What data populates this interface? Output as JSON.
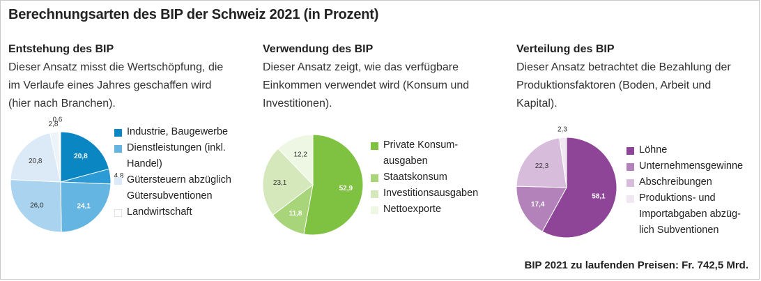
{
  "title": "Berechnungsarten des BIP der Schweiz 2021 (in Prozent)",
  "footnote": "BIP 2021 zu laufenden Preisen: Fr. 742,5 Mrd.",
  "columns": [
    {
      "title": "Entstehung des BIP",
      "desc": [
        "Dieser Ansatz misst die Wertschöpfung, die",
        "im Verlaufe eines Jahres geschaffen wird",
        "(hier nach Branchen)."
      ],
      "legend": [
        [
          "Industrie, Baugewerbe"
        ],
        [
          "Dienstleistungen (inkl.",
          "Handel)"
        ],
        [
          "Gütersteuern abzüglich",
          "Gütersubventionen"
        ],
        [
          "Landwirtschaft"
        ]
      ]
    },
    {
      "title": "Verwendung des BIP",
      "desc": [
        "Dieser Ansatz zeigt, wie das verfügbare",
        "Einkommen verwendet wird (Konsum und",
        "Investitionen)."
      ],
      "legend": [
        [
          "Private Konsum-",
          "ausgaben"
        ],
        [
          "Staatskonsum"
        ],
        [
          "Investitionsausgaben"
        ],
        [
          "Nettoexporte"
        ]
      ]
    },
    {
      "title": "Verteilung des BIP",
      "desc": [
        "Dieser Ansatz betrachtet die Bezahlung der",
        "Produktionsfaktoren (Boden, Arbeit und",
        "Kapital)."
      ],
      "legend": [
        [
          "Löhne"
        ],
        [
          "Unternehmensgewinne"
        ],
        [
          "Abschreibungen"
        ],
        [
          "Produktions- und",
          "Importabgaben abzüg-",
          "lich Subventionen"
        ]
      ]
    }
  ],
  "chart_data": [
    {
      "type": "pie",
      "title": "Entstehung des BIP",
      "slices": [
        {
          "label": "Industrie, Baugewerbe",
          "value": 20.8,
          "display": "20,8",
          "color": "#0a86c2"
        },
        {
          "label": "Industrie, Baugewerbe",
          "value": 4.8,
          "display": "4,8",
          "color": "#2c9ad4"
        },
        {
          "label": "Dienstleistungen (inkl. Handel)",
          "value": 24.1,
          "display": "24,1",
          "color": "#64b5e2"
        },
        {
          "label": "Dienstleistungen (inkl. Handel)",
          "value": 26.0,
          "display": "26,0",
          "color": "#a9d3ee"
        },
        {
          "label": "Gütersteuern abzüglich Gütersubventionen",
          "value": 20.8,
          "display": "20,8",
          "color": "#dbeaf6"
        },
        {
          "label": "Gütersteuern abzüglich Gütersubventionen",
          "value": 2.8,
          "display": "2,8",
          "color": "#ecf4fa"
        },
        {
          "label": "Landwirtschaft",
          "value": 0.6,
          "display": "0,6",
          "color": "#ffffff"
        }
      ],
      "legend_colors": [
        "#0a86c2",
        "#64b5e2",
        "#dbeaf6",
        "#ffffff"
      ]
    },
    {
      "type": "pie",
      "title": "Verwendung des BIP",
      "slices": [
        {
          "label": "Private Konsumausgaben",
          "value": 52.9,
          "display": "52,9",
          "color": "#7fc241"
        },
        {
          "label": "Staatskonsum",
          "value": 11.8,
          "display": "11,8",
          "color": "#a8d47a"
        },
        {
          "label": "Investitionsausgaben",
          "value": 23.1,
          "display": "23,1",
          "color": "#d4e8bb"
        },
        {
          "label": "Nettoexporte",
          "value": 12.2,
          "display": "12,2",
          "color": "#eef6e4"
        }
      ],
      "legend_colors": [
        "#7fc241",
        "#a8d47a",
        "#d4e8bb",
        "#eef6e4"
      ]
    },
    {
      "type": "pie",
      "title": "Verteilung des BIP",
      "slices": [
        {
          "label": "Löhne",
          "value": 58.1,
          "display": "58,1",
          "color": "#8e4597"
        },
        {
          "label": "Unternehmensgewinne",
          "value": 17.4,
          "display": "17,4",
          "color": "#b382bb"
        },
        {
          "label": "Abschreibungen",
          "value": 22.3,
          "display": "22,3",
          "color": "#d7bddb"
        },
        {
          "label": "Produktions- und Importabgaben abzüglich Subventionen",
          "value": 2.3,
          "display": "2,3",
          "color": "#f1e7f3"
        }
      ],
      "legend_colors": [
        "#8e4597",
        "#b382bb",
        "#d7bddb",
        "#f1e7f3"
      ]
    }
  ]
}
